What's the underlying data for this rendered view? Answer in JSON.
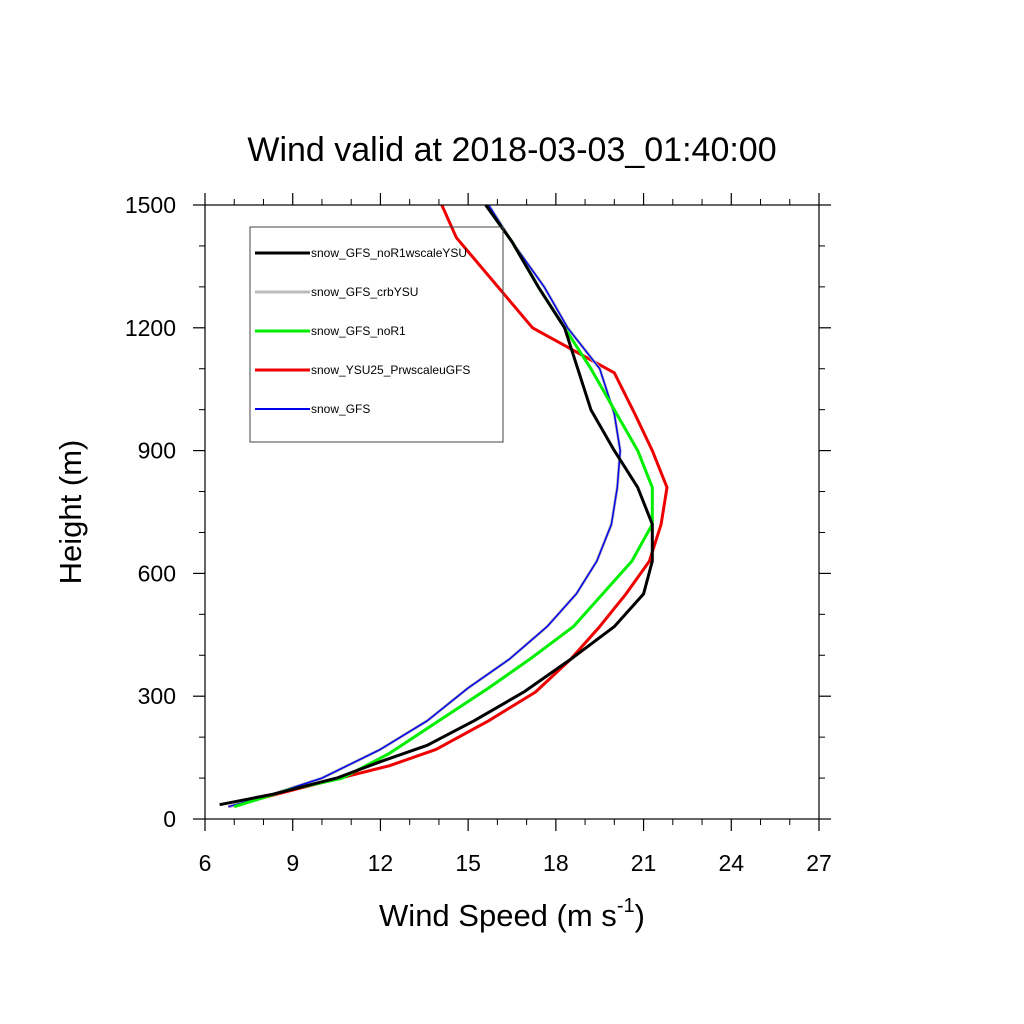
{
  "chart_data": {
    "type": "line",
    "title": "Wind valid at 2018-03-03_01:40:00",
    "xlabel": "Wind Speed (m s",
    "xlabel_superscript": "-1",
    "xlabel_suffix": ")",
    "ylabel": "Height (m)",
    "xlim": [
      6,
      27
    ],
    "ylim": [
      0,
      1500
    ],
    "xticks": [
      6,
      9,
      12,
      15,
      18,
      21,
      24,
      27
    ],
    "yticks": [
      0,
      300,
      600,
      900,
      1200,
      1500
    ],
    "grid": false,
    "legend_position": "top-left",
    "series": [
      {
        "name": "snow_GFS_noR1wscaleYSU",
        "color": "#000000",
        "x": [
          6.5,
          8.3,
          10.5,
          12.0,
          13.6,
          15.2,
          16.9,
          18.5,
          20.0,
          21.0,
          21.3,
          21.3,
          20.8,
          20.0,
          19.2,
          18.3,
          17.4,
          16.5,
          15.6
        ],
        "y": [
          35,
          60,
          100,
          140,
          180,
          240,
          310,
          390,
          470,
          550,
          630,
          720,
          810,
          900,
          1000,
          1200,
          1300,
          1410,
          1500
        ]
      },
      {
        "name": "snow_GFS_crbYSU",
        "color": "#bbbbbb",
        "x": [
          6.8,
          8.3,
          10.0,
          12.0,
          13.6,
          15.0,
          16.4,
          17.7,
          18.7,
          19.4,
          19.9,
          20.1,
          20.2,
          20.0,
          19.5,
          18.4,
          17.6,
          16.5,
          15.7
        ],
        "y": [
          30,
          60,
          100,
          170,
          240,
          320,
          390,
          470,
          550,
          630,
          720,
          810,
          900,
          990,
          1100,
          1200,
          1300,
          1410,
          1500
        ]
      },
      {
        "name": "snow_GFS_noR1",
        "color": "#00ee00",
        "x": [
          7.0,
          8.8,
          10.7,
          12.3,
          14.0,
          15.7,
          17.1,
          18.6,
          20.6,
          21.3,
          21.3,
          20.8,
          20.0,
          19.2,
          18.3,
          17.4,
          16.5,
          15.6
        ],
        "y": [
          30,
          70,
          100,
          160,
          240,
          320,
          390,
          470,
          630,
          720,
          810,
          900,
          1000,
          1100,
          1200,
          1300,
          1410,
          1500
        ]
      },
      {
        "name": "snow_YSU25_PrwscaleuGFS",
        "color": "#ee0000",
        "x": [
          6.8,
          9.5,
          12.3,
          13.9,
          15.7,
          17.3,
          18.5,
          19.5,
          20.4,
          21.2,
          21.6,
          21.8,
          21.3,
          20.7,
          20.0,
          17.2,
          14.6,
          14.1
        ],
        "y": [
          30,
          80,
          130,
          170,
          240,
          310,
          390,
          470,
          550,
          630,
          720,
          810,
          900,
          990,
          1090,
          1200,
          1420,
          1500
        ]
      },
      {
        "name": "snow_GFS",
        "color": "#0000ee",
        "x": [
          6.8,
          8.3,
          10.0,
          12.0,
          13.6,
          15.0,
          16.4,
          17.7,
          18.7,
          19.4,
          19.9,
          20.1,
          20.2,
          20.0,
          19.5,
          18.4,
          17.6,
          16.5,
          15.7
        ],
        "y": [
          30,
          60,
          100,
          170,
          240,
          320,
          390,
          470,
          550,
          630,
          720,
          810,
          900,
          990,
          1100,
          1200,
          1300,
          1410,
          1500
        ]
      }
    ]
  }
}
